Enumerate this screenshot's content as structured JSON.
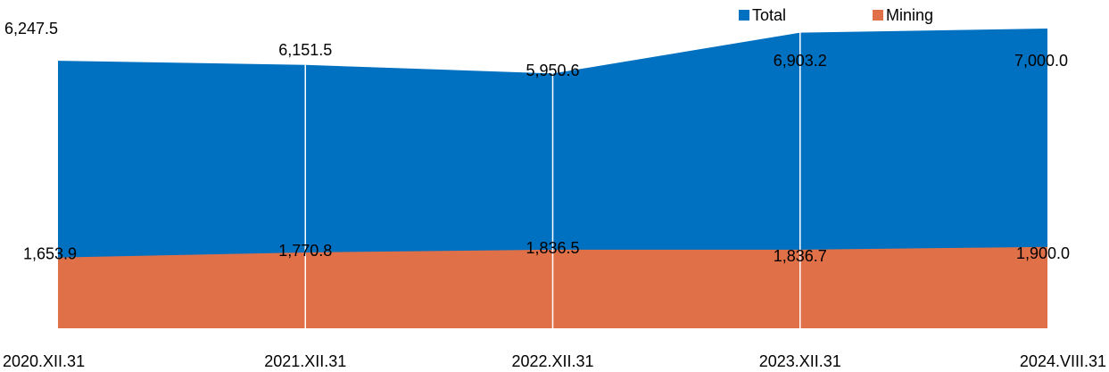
{
  "chart_data": {
    "type": "area",
    "categories": [
      "2020.XII.31",
      "2021.XII.31",
      "2022.XII.31",
      "2023.XII.31",
      "2024.VIII.31"
    ],
    "series": [
      {
        "name": "Total",
        "values": [
          6247.5,
          6151.5,
          5950.6,
          6903.2,
          7000.0
        ],
        "labels": [
          "6,247.5",
          "6,151.5",
          "5,950.6",
          "6,903.2",
          "7,000.0"
        ],
        "color": "#0070C0"
      },
      {
        "name": "Mining",
        "values": [
          1653.9,
          1770.8,
          1836.5,
          1836.7,
          1900.0
        ],
        "labels": [
          "1,653.9",
          "1,770.8",
          "1,836.5",
          "1,836.7",
          "1,900.0"
        ],
        "color": "#E07048"
      }
    ],
    "stacked": false,
    "ylim": [
      0,
      7000
    ],
    "grid": "vertical",
    "legend": "top-right",
    "title": "",
    "xlabel": "",
    "ylabel": ""
  }
}
